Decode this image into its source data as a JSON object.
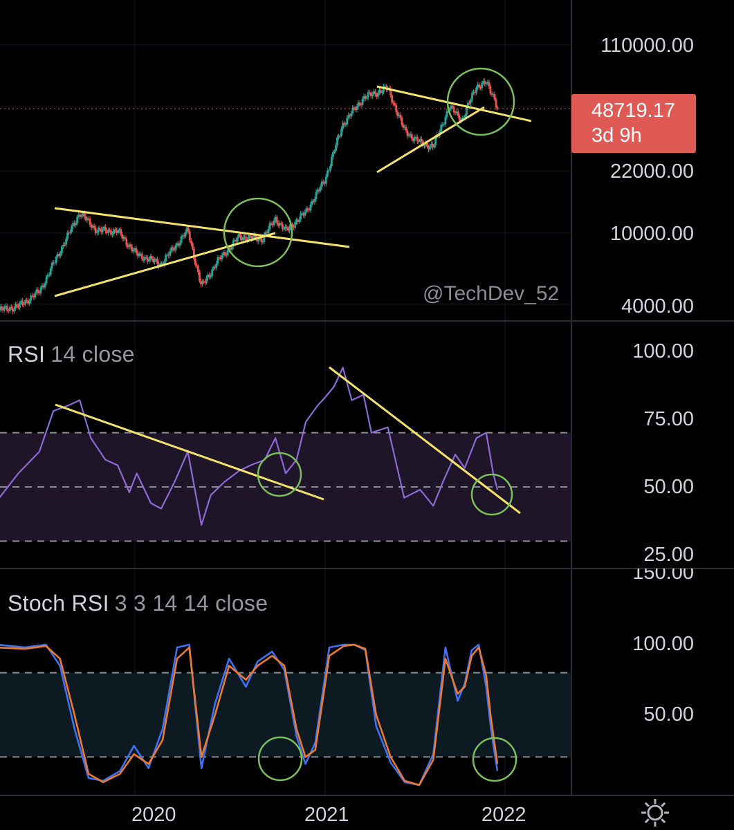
{
  "watermark": "@TechDev_52",
  "price_tag": {
    "price": "48719.17",
    "countdown": "3d 9h"
  },
  "price_axis_labels": [
    "110000.00",
    "22000.00",
    "10000.00",
    "4000.00"
  ],
  "rsi_pane": {
    "indicator": "RSI",
    "params": "14 close",
    "axis_labels": [
      "100.00",
      "75.00",
      "50.00",
      "25.00"
    ]
  },
  "stoch_pane": {
    "indicator": "Stoch RSI",
    "params": "3 3 14 14 close",
    "axis_labels": [
      "150.00",
      "100.00",
      "50.00"
    ]
  },
  "time_labels": [
    "2020",
    "2021",
    "2022"
  ],
  "settings_icon": "gear-icon",
  "colors": {
    "background": "#000000",
    "candle_up": "#26a69a",
    "candle_down": "#ef5350",
    "trendline": "#f3e26b",
    "circle": "#7bc05a",
    "rsi_line": "#8f6ad6",
    "rsi_band": "#1e1528",
    "stoch_k": "#3d73f0",
    "stoch_d": "#f07a2c",
    "stoch_band": "#0d1a22",
    "price_tag": "#e05a55"
  },
  "chart_data": [
    {
      "type": "candlestick",
      "title": "",
      "y_scale": "log",
      "ylim": [
        4000,
        110000
      ],
      "x_ticks": [
        "2020",
        "2021",
        "2022"
      ],
      "xlim": [
        "2019-01-01",
        "2022-04-01"
      ],
      "close_path": [
        [
          "2019-01-01",
          3700
        ],
        [
          "2019-02-15",
          3900
        ],
        [
          "2019-04-01",
          4700
        ],
        [
          "2019-05-15",
          7900
        ],
        [
          "2019-06-26",
          12900
        ],
        [
          "2019-08-01",
          10300
        ],
        [
          "2019-09-15",
          10200
        ],
        [
          "2019-10-25",
          7600
        ],
        [
          "2019-12-17",
          6700
        ],
        [
          "2020-02-12",
          10300
        ],
        [
          "2020-03-12",
          5000
        ],
        [
          "2020-04-15",
          6900
        ],
        [
          "2020-06-01",
          9500
        ],
        [
          "2020-07-20",
          9200
        ],
        [
          "2020-08-17",
          12000
        ],
        [
          "2020-09-08",
          10200
        ],
        [
          "2020-10-21",
          13000
        ],
        [
          "2020-11-30",
          19500
        ],
        [
          "2021-01-08",
          40000
        ],
        [
          "2021-02-21",
          56000
        ],
        [
          "2021-04-14",
          63500
        ],
        [
          "2021-05-19",
          37000
        ],
        [
          "2021-06-22",
          31500
        ],
        [
          "2021-07-20",
          30000
        ],
        [
          "2021-08-23",
          49800
        ],
        [
          "2021-09-20",
          42500
        ],
        [
          "2021-10-20",
          65000
        ],
        [
          "2021-11-10",
          67500
        ],
        [
          "2021-11-28",
          56000
        ],
        [
          "2021-12-04",
          48719
        ]
      ],
      "last_price": 48719.17
    },
    {
      "type": "line",
      "title": "",
      "ylim": [
        25,
        100
      ],
      "levels": [
        70,
        50,
        30
      ],
      "x": [
        "2019-01-01",
        "2019-02-15",
        "2019-04-01",
        "2019-05-01",
        "2019-06-01",
        "2019-06-26",
        "2019-07-20",
        "2019-08-20",
        "2019-09-15",
        "2019-10-10",
        "2019-10-26",
        "2019-11-25",
        "2019-12-17",
        "2020-01-15",
        "2020-02-12",
        "2020-03-12",
        "2020-04-01",
        "2020-05-01",
        "2020-06-01",
        "2020-06-25",
        "2020-07-25",
        "2020-08-17",
        "2020-09-08",
        "2020-10-01",
        "2020-10-21",
        "2020-11-15",
        "2020-12-01",
        "2020-12-20",
        "2021-01-08",
        "2021-01-27",
        "2021-02-21",
        "2021-03-10",
        "2021-04-14",
        "2021-05-19",
        "2021-06-22",
        "2021-07-20",
        "2021-08-10",
        "2021-09-05",
        "2021-09-25",
        "2021-10-20",
        "2021-11-10",
        "2021-11-25",
        "2021-12-04"
      ],
      "values": [
        45,
        55,
        63,
        78,
        80,
        82,
        68,
        60,
        58,
        48,
        55,
        44,
        42,
        52,
        63,
        36,
        47,
        52,
        56,
        58,
        60,
        68,
        55,
        60,
        74,
        80,
        83,
        87,
        94,
        82,
        84,
        70,
        72,
        46,
        49,
        43,
        52,
        62,
        57,
        68,
        70,
        55,
        49
      ]
    },
    {
      "type": "line",
      "title": "",
      "ylim": [
        0,
        150
      ],
      "levels": [
        80,
        20
      ],
      "x": [
        "2019-01-01",
        "2019-03-01",
        "2019-04-15",
        "2019-05-15",
        "2019-06-15",
        "2019-07-15",
        "2019-08-15",
        "2019-09-20",
        "2019-10-20",
        "2019-11-20",
        "2019-12-20",
        "2020-01-20",
        "2020-02-15",
        "2020-03-12",
        "2020-04-10",
        "2020-05-10",
        "2020-06-15",
        "2020-07-10",
        "2020-08-10",
        "2020-09-05",
        "2020-10-01",
        "2020-10-20",
        "2020-11-10",
        "2020-12-10",
        "2021-01-10",
        "2021-02-01",
        "2021-02-25",
        "2021-03-20",
        "2021-04-20",
        "2021-05-20",
        "2021-06-20",
        "2021-07-20",
        "2021-08-15",
        "2021-09-10",
        "2021-09-25",
        "2021-10-10",
        "2021-10-25",
        "2021-11-10",
        "2021-11-20",
        "2021-12-04"
      ],
      "series": [
        {
          "values": [
            100,
            98,
            100,
            85,
            40,
            5,
            3,
            10,
            28,
            12,
            40,
            98,
            100,
            12,
            58,
            90,
            70,
            88,
            95,
            82,
            35,
            15,
            30,
            98,
            100,
            100,
            96,
            42,
            16,
            2,
            0,
            22,
            98,
            60,
            72,
            96,
            100,
            70,
            40,
            10
          ]
        },
        {
          "values": [
            98,
            97,
            99,
            90,
            50,
            8,
            2,
            8,
            22,
            15,
            32,
            90,
            98,
            20,
            50,
            85,
            75,
            85,
            92,
            85,
            40,
            20,
            25,
            92,
            99,
            100,
            97,
            50,
            20,
            3,
            0,
            18,
            90,
            65,
            70,
            92,
            98,
            78,
            48,
            15
          ]
        }
      ]
    }
  ]
}
